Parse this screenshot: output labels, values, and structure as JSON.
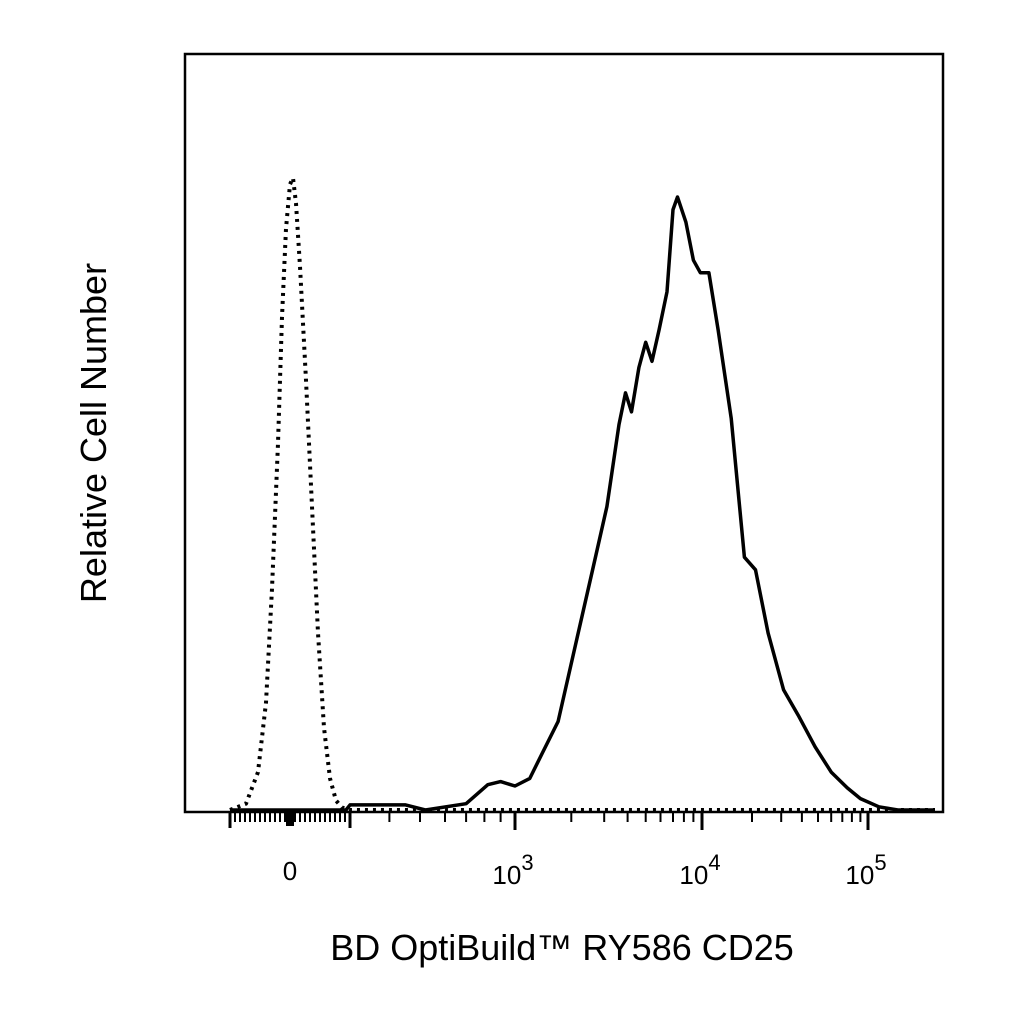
{
  "chart_data": {
    "type": "line",
    "title": "",
    "xlabel": "BD OptiBuild™ RY586 CD25",
    "ylabel": "Relative Cell Number",
    "x_scale": "biexponential",
    "xlim": [
      -300,
      180000
    ],
    "ylim": [
      0,
      1
    ],
    "grid": false,
    "legend": "none",
    "x_ticks": [
      {
        "value": 0,
        "label": "0",
        "exp": ""
      },
      {
        "value": 1000,
        "label": "10",
        "exp": "3"
      },
      {
        "value": 10000,
        "label": "10",
        "exp": "4"
      },
      {
        "value": 100000,
        "label": "10",
        "exp": "5"
      }
    ],
    "series": [
      {
        "style": "dotted",
        "color": "#000000",
        "points": [
          [
            -300,
            0.0
          ],
          [
            -220,
            0.01
          ],
          [
            -160,
            0.06
          ],
          [
            -120,
            0.17
          ],
          [
            -90,
            0.35
          ],
          [
            -60,
            0.58
          ],
          [
            -40,
            0.78
          ],
          [
            -20,
            0.92
          ],
          [
            0,
            0.99
          ],
          [
            15,
            1.0
          ],
          [
            30,
            0.96
          ],
          [
            50,
            0.86
          ],
          [
            80,
            0.68
          ],
          [
            110,
            0.48
          ],
          [
            140,
            0.28
          ],
          [
            170,
            0.13
          ],
          [
            200,
            0.05
          ],
          [
            230,
            0.015
          ],
          [
            260,
            0.004
          ],
          [
            300,
            0.0
          ],
          [
            1000,
            0.0
          ],
          [
            10000,
            0.0
          ],
          [
            180000,
            0.0
          ]
        ]
      },
      {
        "style": "solid",
        "color": "#000000",
        "points": [
          [
            -300,
            0.0
          ],
          [
            280,
            0.0
          ],
          [
            300,
            0.008
          ],
          [
            350,
            0.008
          ],
          [
            450,
            0.008
          ],
          [
            520,
            0.0
          ],
          [
            700,
            0.01
          ],
          [
            820,
            0.04
          ],
          [
            900,
            0.045
          ],
          [
            1000,
            0.038
          ],
          [
            1200,
            0.05
          ],
          [
            1400,
            0.09
          ],
          [
            1700,
            0.14
          ],
          [
            2100,
            0.26
          ],
          [
            2600,
            0.38
          ],
          [
            3100,
            0.48
          ],
          [
            3600,
            0.61
          ],
          [
            3900,
            0.66
          ],
          [
            4200,
            0.63
          ],
          [
            4600,
            0.7
          ],
          [
            5000,
            0.74
          ],
          [
            5400,
            0.71
          ],
          [
            5900,
            0.76
          ],
          [
            6500,
            0.82
          ],
          [
            7000,
            0.95
          ],
          [
            7400,
            0.97
          ],
          [
            8200,
            0.93
          ],
          [
            9000,
            0.87
          ],
          [
            9800,
            0.85
          ],
          [
            11000,
            0.85
          ],
          [
            12500,
            0.76
          ],
          [
            15000,
            0.62
          ],
          [
            18000,
            0.4
          ],
          [
            21000,
            0.38
          ],
          [
            25000,
            0.28
          ],
          [
            31000,
            0.19
          ],
          [
            38000,
            0.15
          ],
          [
            48000,
            0.1
          ],
          [
            60000,
            0.06
          ],
          [
            75000,
            0.035
          ],
          [
            90000,
            0.018
          ],
          [
            110000,
            0.005
          ],
          [
            130000,
            0.0
          ],
          [
            180000,
            0.0
          ]
        ]
      }
    ]
  }
}
